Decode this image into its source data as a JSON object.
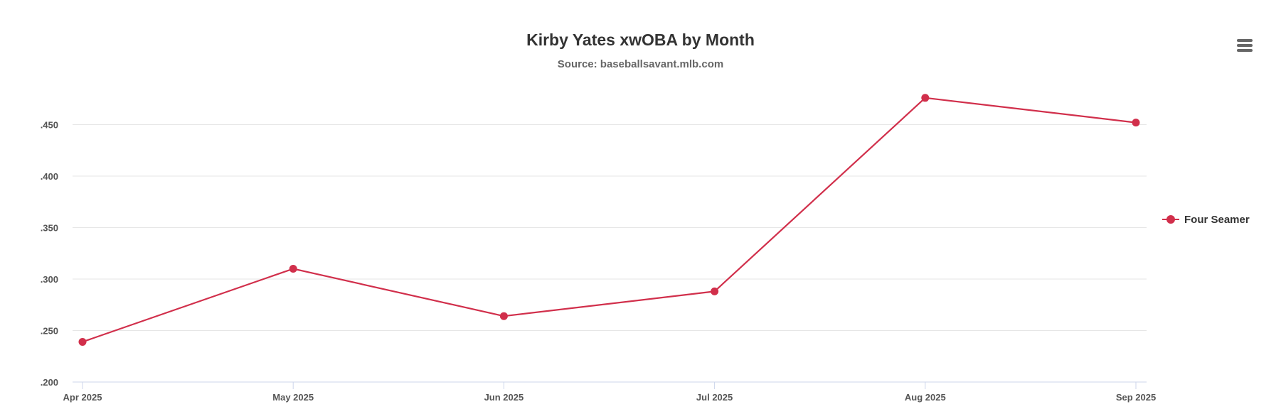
{
  "chart_data": {
    "type": "line",
    "title": "Kirby Yates xwOBA by Month",
    "subtitle": "Source: baseballsavant.mlb.com",
    "xlabel": "",
    "ylabel": "",
    "categories": [
      "Apr 2025",
      "May 2025",
      "Jun 2025",
      "Jul 2025",
      "Aug 2025",
      "Sep 2025"
    ],
    "series": [
      {
        "name": "Four Seamer",
        "color": "#d12f4b",
        "values": [
          0.239,
          0.31,
          0.264,
          0.288,
          0.476,
          0.452
        ]
      }
    ],
    "ylim": [
      0.2,
      0.45
    ],
    "yticks": [
      {
        "value": 0.2,
        "label": ".200"
      },
      {
        "value": 0.25,
        "label": ".250"
      },
      {
        "value": 0.3,
        "label": ".300"
      },
      {
        "value": 0.35,
        "label": ".350"
      },
      {
        "value": 0.4,
        "label": ".400"
      },
      {
        "value": 0.45,
        "label": ".450"
      }
    ],
    "grid": true,
    "legend_position": "right"
  },
  "toolbar": {
    "menu_icon": "hamburger-menu-icon"
  }
}
